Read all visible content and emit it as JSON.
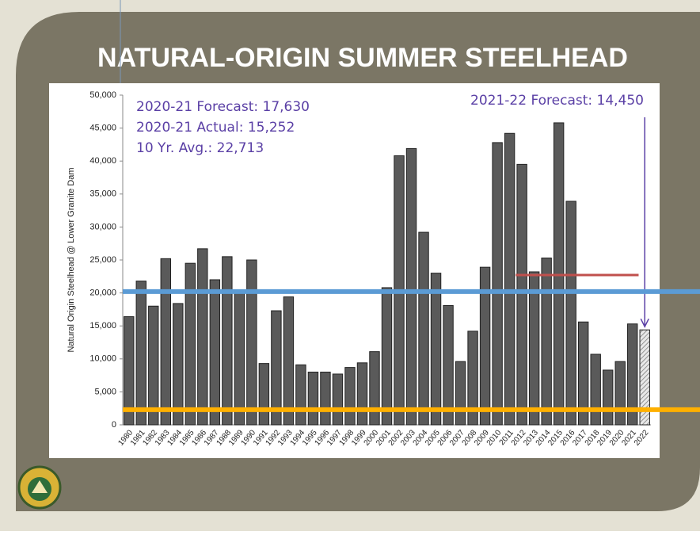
{
  "chart_data": {
    "type": "bar",
    "title": "NATURAL-ORIGIN SUMMER STEELHEAD",
    "y_label": "Natural Origin Steelhead @ Lower Granite Dam",
    "categories": [
      "1980",
      "1981",
      "1982",
      "1983",
      "1984",
      "1985",
      "1986",
      "1987",
      "1988",
      "1989",
      "1990",
      "1991",
      "1992",
      "1993",
      "1994",
      "1995",
      "1996",
      "1997",
      "1998",
      "1999",
      "2000",
      "2001",
      "2002",
      "2003",
      "2004",
      "2005",
      "2006",
      "2007",
      "2008",
      "2009",
      "2010",
      "2011",
      "2012",
      "2013",
      "2014",
      "2015",
      "2016",
      "2017",
      "2018",
      "2019",
      "2020",
      "2021",
      "2022"
    ],
    "values": [
      16400,
      21800,
      18000,
      25200,
      18400,
      24500,
      26700,
      22000,
      25500,
      20200,
      25000,
      9300,
      17300,
      19400,
      9100,
      8000,
      8000,
      7700,
      8700,
      9400,
      11100,
      20800,
      40800,
      41900,
      29200,
      23000,
      18100,
      9600,
      14200,
      23900,
      42800,
      44200,
      39500,
      23200,
      25300,
      45800,
      33900,
      15600,
      10700,
      8300,
      9600,
      15300,
      14400
    ],
    "color": "#5a5a5a",
    "hatched_last": true,
    "ylim": [
      0,
      50000
    ],
    "yticks": [
      0,
      {
        "value": 5000,
        "label": "5,000"
      },
      {
        "value": 10000,
        "label": "10,000"
      },
      {
        "value": 15000,
        "label": "15,000"
      },
      {
        "value": 20000,
        "label": "20,000"
      },
      {
        "value": 25000,
        "label": "25,000"
      },
      {
        "value": 30000,
        "label": "30,000"
      },
      {
        "value": 35000,
        "label": "35,000"
      },
      {
        "value": 40000,
        "label": "40,000"
      },
      {
        "value": 45000,
        "label": "45,000"
      },
      {
        "value": 50000,
        "label": "50,000"
      }
    ],
    "annotations": [
      "2020-21 Forecast: 17,630",
      "2020-21 Actual: 15,252",
      "10 Yr. Avg.: 22,713",
      "2021-22 Forecast: 14,450"
    ],
    "reference_lines": [
      {
        "value": 20200,
        "color": "#5b9bd5"
      },
      {
        "value": 2300,
        "color": "#ffb000"
      },
      {
        "value": 22713,
        "color": "#c0504d",
        "from": "2012",
        "to": "2021"
      }
    ]
  }
}
